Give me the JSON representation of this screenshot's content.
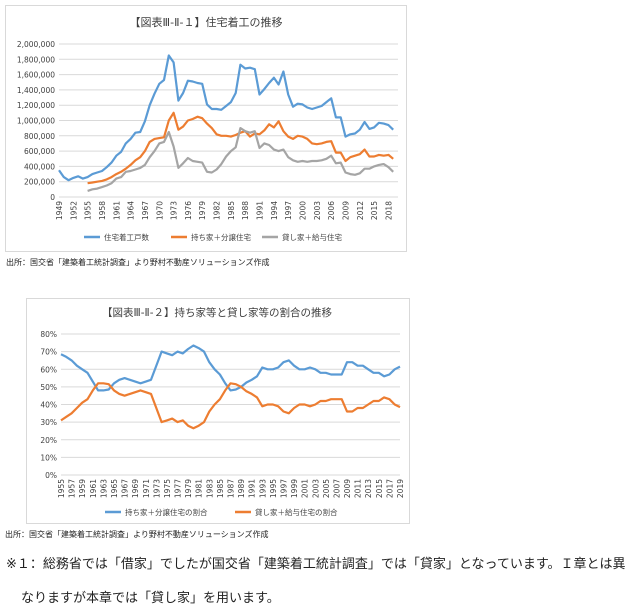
{
  "chart_data": [
    {
      "type": "line",
      "title": "【図表Ⅲ-Ⅱ-１】住宅着工の推移",
      "ylim": [
        0,
        2000000
      ],
      "yticks": [
        0,
        200000,
        400000,
        600000,
        800000,
        1000000,
        1200000,
        1400000,
        1600000,
        1800000,
        2000000
      ],
      "ytick_labels": [
        "0",
        "200,000",
        "400,000",
        "600,000",
        "800,000",
        "1,000,000",
        "1,200,000",
        "1,400,000",
        "1,600,000",
        "1,800,000",
        "2,000,000"
      ],
      "xlim": [
        1949,
        2020
      ],
      "xtick_labels": [
        "1949",
        "1952",
        "1955",
        "1958",
        "1961",
        "1964",
        "1967",
        "1970",
        "1973",
        "1976",
        "1979",
        "1982",
        "1985",
        "1988",
        "1991",
        "1994",
        "1997",
        "2000",
        "2003",
        "2006",
        "2009",
        "2012",
        "2015",
        "2018"
      ],
      "grid": true,
      "legend_position": "bottom",
      "series": [
        {
          "name": "住宅着工戸数",
          "color": "#5b9bd5",
          "x": [
            1949,
            1950,
            1951,
            1952,
            1953,
            1954,
            1955,
            1956,
            1957,
            1958,
            1959,
            1960,
            1961,
            1962,
            1963,
            1964,
            1965,
            1966,
            1967,
            1968,
            1969,
            1970,
            1971,
            1972,
            1973,
            1974,
            1975,
            1976,
            1977,
            1978,
            1979,
            1980,
            1981,
            1982,
            1983,
            1984,
            1985,
            1986,
            1987,
            1988,
            1989,
            1990,
            1991,
            1992,
            1993,
            1994,
            1995,
            1996,
            1997,
            1998,
            1999,
            2000,
            2001,
            2002,
            2003,
            2004,
            2005,
            2006,
            2007,
            2008,
            2009,
            2010,
            2011,
            2012,
            2013,
            2014,
            2015,
            2016,
            2017,
            2018,
            2019
          ],
          "y": [
            350000,
            260000,
            220000,
            250000,
            270000,
            240000,
            260000,
            300000,
            320000,
            340000,
            390000,
            450000,
            540000,
            590000,
            700000,
            760000,
            840000,
            850000,
            990000,
            1200000,
            1350000,
            1480000,
            1530000,
            1850000,
            1760000,
            1260000,
            1360000,
            1520000,
            1510000,
            1490000,
            1480000,
            1210000,
            1150000,
            1150000,
            1140000,
            1190000,
            1240000,
            1360000,
            1730000,
            1680000,
            1690000,
            1670000,
            1340000,
            1410000,
            1490000,
            1560000,
            1470000,
            1640000,
            1340000,
            1180000,
            1220000,
            1210000,
            1170000,
            1150000,
            1170000,
            1190000,
            1240000,
            1290000,
            1040000,
            1040000,
            790000,
            820000,
            830000,
            880000,
            980000,
            890000,
            910000,
            970000,
            960000,
            940000,
            880000
          ]
        },
        {
          "name": "持ち家＋分譲住宅",
          "color": "#ed7d31",
          "x": [
            1955,
            1956,
            1957,
            1958,
            1959,
            1960,
            1961,
            1962,
            1963,
            1964,
            1965,
            1966,
            1967,
            1968,
            1969,
            1970,
            1971,
            1972,
            1973,
            1974,
            1975,
            1976,
            1977,
            1978,
            1979,
            1980,
            1981,
            1982,
            1983,
            1984,
            1985,
            1986,
            1987,
            1988,
            1989,
            1990,
            1991,
            1992,
            1993,
            1994,
            1995,
            1996,
            1997,
            1998,
            1999,
            2000,
            2001,
            2002,
            2003,
            2004,
            2005,
            2006,
            2007,
            2008,
            2009,
            2010,
            2011,
            2012,
            2013,
            2014,
            2015,
            2016,
            2017,
            2018,
            2019
          ],
          "y": [
            180000,
            190000,
            200000,
            210000,
            230000,
            260000,
            300000,
            330000,
            370000,
            420000,
            480000,
            520000,
            600000,
            720000,
            760000,
            770000,
            780000,
            1000000,
            1100000,
            880000,
            920000,
            1000000,
            1020000,
            1050000,
            1030000,
            960000,
            900000,
            820000,
            800000,
            800000,
            790000,
            810000,
            840000,
            860000,
            790000,
            830000,
            820000,
            870000,
            950000,
            910000,
            990000,
            860000,
            790000,
            760000,
            800000,
            790000,
            760000,
            700000,
            690000,
            700000,
            720000,
            730000,
            580000,
            580000,
            470000,
            520000,
            540000,
            560000,
            620000,
            530000,
            530000,
            550000,
            540000,
            550000,
            500000
          ]
        },
        {
          "name": "貸し家＋給与住宅",
          "color": "#a5a5a5",
          "x": [
            1955,
            1956,
            1957,
            1958,
            1959,
            1960,
            1961,
            1962,
            1963,
            1964,
            1965,
            1966,
            1967,
            1968,
            1969,
            1970,
            1971,
            1972,
            1973,
            1974,
            1975,
            1976,
            1977,
            1978,
            1979,
            1980,
            1981,
            1982,
            1983,
            1984,
            1985,
            1986,
            1987,
            1988,
            1989,
            1990,
            1991,
            1992,
            1993,
            1994,
            1995,
            1996,
            1997,
            1998,
            1999,
            2000,
            2001,
            2002,
            2003,
            2004,
            2005,
            2006,
            2007,
            2008,
            2009,
            2010,
            2011,
            2012,
            2013,
            2014,
            2015,
            2016,
            2017,
            2018,
            2019
          ],
          "y": [
            80000,
            100000,
            110000,
            130000,
            150000,
            180000,
            240000,
            260000,
            330000,
            340000,
            360000,
            380000,
            420000,
            520000,
            600000,
            700000,
            720000,
            850000,
            660000,
            380000,
            440000,
            510000,
            470000,
            460000,
            450000,
            330000,
            320000,
            360000,
            430000,
            530000,
            600000,
            650000,
            900000,
            860000,
            840000,
            860000,
            640000,
            700000,
            680000,
            620000,
            600000,
            620000,
            520000,
            480000,
            460000,
            470000,
            460000,
            470000,
            470000,
            480000,
            500000,
            540000,
            440000,
            450000,
            320000,
            300000,
            290000,
            310000,
            370000,
            370000,
            400000,
            420000,
            430000,
            390000,
            330000
          ]
        }
      ]
    },
    {
      "type": "line",
      "title": "【図表Ⅲ-Ⅱ-２】持ち家等と貸し家等の割合の推移",
      "ylim": [
        0,
        80
      ],
      "yticks": [
        0,
        10,
        20,
        30,
        40,
        50,
        60,
        70,
        80
      ],
      "ytick_labels": [
        "0%",
        "10%",
        "20%",
        "30%",
        "40%",
        "50%",
        "60%",
        "70%",
        "80%"
      ],
      "xlim": [
        1955,
        2019
      ],
      "xtick_labels": [
        "1955",
        "1957",
        "1959",
        "1961",
        "1963",
        "1965",
        "1967",
        "1969",
        "1971",
        "1973",
        "1975",
        "1977",
        "1979",
        "1981",
        "1983",
        "1985",
        "1987",
        "1989",
        "1991",
        "1993",
        "1995",
        "1997",
        "1999",
        "2001",
        "2003",
        "2005",
        "2007",
        "2009",
        "2011",
        "2013",
        "2015",
        "2017",
        "2019"
      ],
      "grid": true,
      "legend_position": "bottom",
      "series": [
        {
          "name": "持ち家＋分譲住宅の割合",
          "color": "#5b9bd5",
          "x": [
            1955,
            1956,
            1957,
            1958,
            1959,
            1960,
            1961,
            1962,
            1963,
            1964,
            1965,
            1966,
            1967,
            1968,
            1969,
            1970,
            1971,
            1972,
            1973,
            1974,
            1975,
            1976,
            1977,
            1978,
            1979,
            1980,
            1981,
            1982,
            1983,
            1984,
            1985,
            1986,
            1987,
            1988,
            1989,
            1990,
            1991,
            1992,
            1993,
            1994,
            1995,
            1996,
            1997,
            1998,
            1999,
            2000,
            2001,
            2002,
            2003,
            2004,
            2005,
            2006,
            2007,
            2008,
            2009,
            2010,
            2011,
            2012,
            2013,
            2014,
            2015,
            2016,
            2017,
            2018,
            2019
          ],
          "y": [
            68.5,
            67,
            65,
            62,
            60,
            58,
            53,
            48,
            48,
            48.5,
            52,
            54,
            55,
            54,
            53,
            52,
            53,
            54,
            62,
            70,
            69,
            68,
            70,
            69,
            71.5,
            73.5,
            72,
            70,
            64,
            60,
            57,
            52,
            48,
            48.5,
            50,
            52.5,
            54,
            56,
            61,
            60,
            60,
            61,
            64,
            65,
            62,
            60,
            60,
            61,
            60,
            58,
            58,
            57,
            57,
            57,
            64,
            64,
            62,
            62,
            60,
            58,
            58,
            56,
            57,
            60,
            61.5
          ]
        },
        {
          "name": "貸し家＋給与住宅の割合",
          "color": "#ed7d31",
          "x": [
            1955,
            1956,
            1957,
            1958,
            1959,
            1960,
            1961,
            1962,
            1963,
            1964,
            1965,
            1966,
            1967,
            1968,
            1969,
            1970,
            1971,
            1972,
            1973,
            1974,
            1975,
            1976,
            1977,
            1978,
            1979,
            1980,
            1981,
            1982,
            1983,
            1984,
            1985,
            1986,
            1987,
            1988,
            1989,
            1990,
            1991,
            1992,
            1993,
            1994,
            1995,
            1996,
            1997,
            1998,
            1999,
            2000,
            2001,
            2002,
            2003,
            2004,
            2005,
            2006,
            2007,
            2008,
            2009,
            2010,
            2011,
            2012,
            2013,
            2014,
            2015,
            2016,
            2017,
            2018,
            2019
          ],
          "y": [
            31,
            33,
            35,
            38,
            41,
            43,
            48,
            52,
            52,
            51.5,
            48,
            46,
            45,
            46,
            47,
            48,
            47,
            46,
            38,
            30,
            31,
            32,
            30,
            31,
            28,
            26.5,
            28,
            30,
            36,
            40,
            43,
            48,
            52,
            51.5,
            50,
            47.5,
            46,
            44,
            39,
            40,
            40,
            39,
            36,
            35,
            38,
            40,
            40,
            39,
            40,
            42,
            42,
            43,
            43,
            43,
            36,
            36,
            38,
            38,
            40,
            42,
            42,
            44,
            43,
            40,
            38.5
          ]
        }
      ]
    }
  ],
  "sources": {
    "chart1": "出所：国交省「建築着工統計調査」より野村不動産ソリューションズ作成",
    "chart2": "出所：国交省「建築着工統計調査」より野村不動産ソリューションズ作成"
  },
  "note": {
    "line1": "※１：総務省では「借家」でしたが国交省「建築着工統計調査」では「貸家」となっています。Ｉ章とは異",
    "line2": "なりますが本章では「貸し家」を用います。"
  }
}
